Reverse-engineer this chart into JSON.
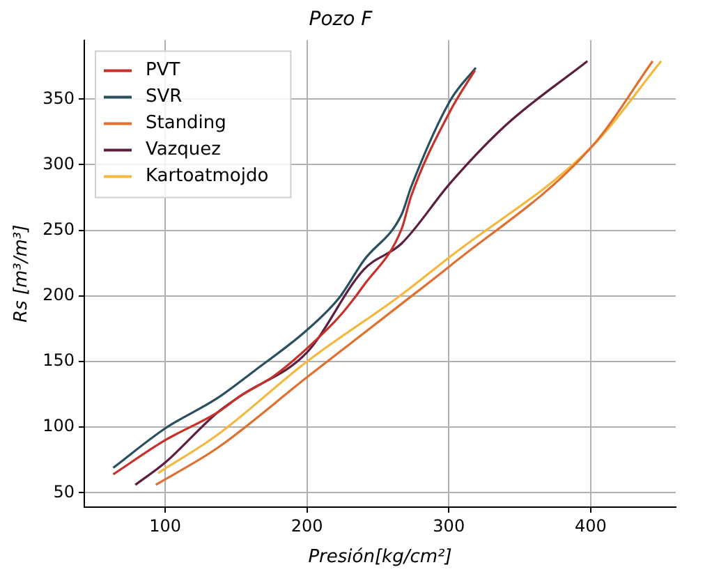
{
  "chart_data": {
    "type": "line",
    "title": "Pozo F",
    "xlabel": "Presión[kg/cm²]",
    "ylabel": "Rs [m³/m³]",
    "xlim": [
      43,
      460
    ],
    "xticks": [
      100,
      200,
      300,
      400
    ],
    "ylim": [
      39,
      395
    ],
    "yticks": [
      50,
      100,
      150,
      200,
      250,
      300,
      350
    ],
    "grid": true,
    "legend": "top left",
    "marker": "none",
    "line_style": "solid",
    "series": [
      {
        "name": "PVT",
        "color": "#c8302a",
        "x": [
          63.4,
          100,
          136.7,
          153.4,
          176.7,
          200,
          223.4,
          240,
          266.7,
          273.4,
          301,
          318.4
        ],
        "values": [
          64,
          90,
          111,
          124,
          139,
          160,
          185,
          208,
          251,
          276,
          341,
          372
        ]
      },
      {
        "name": "SVR",
        "color": "#2a5060",
        "x": [
          63.4,
          100,
          136.7,
          163,
          200,
          223,
          240,
          266.7,
          273.4,
          301,
          319
        ],
        "values": [
          69,
          99,
          122,
          143,
          174,
          199,
          227,
          262,
          283,
          349,
          374
        ]
      },
      {
        "name": "Standing",
        "color": "#e07030",
        "x": [
          93.4,
          136.7,
          200,
          266.7,
          301,
          401,
          443.7
        ],
        "values": [
          56,
          84,
          138,
          194,
          223,
          314,
          379
        ]
      },
      {
        "name": "Vazquez",
        "color": "#5c1f40",
        "x": [
          79,
          100,
          136.7,
          153.4,
          200,
          240,
          266.7,
          301,
          340,
          397.7
        ],
        "values": [
          56,
          73,
          111,
          124,
          157,
          220,
          240,
          286,
          330,
          379
        ]
      },
      {
        "name": "Kartoatmojdo",
        "color": "#f5b83d",
        "x": [
          95,
          136.7,
          200,
          266.7,
          301,
          401,
          449.7
        ],
        "values": [
          65,
          94,
          150,
          201,
          230,
          314,
          379
        ]
      }
    ]
  }
}
